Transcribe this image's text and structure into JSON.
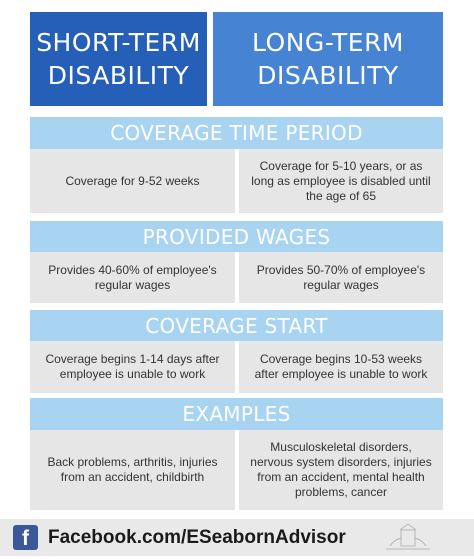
{
  "header": {
    "left_title": "SHORT-TERM\nDISABILITY",
    "right_title": "LONG-TERM\nDISABILITY"
  },
  "sections": [
    {
      "title": "COVERAGE TIME PERIOD",
      "short_term": "Coverage for 9-52 weeks",
      "long_term": "Coverage for 5-10 years, or as long as employee is disabled until the age of 65"
    },
    {
      "title": "PROVIDED WAGES",
      "short_term": "Provides 40-60% of employee's regular wages",
      "long_term": "Provides 50-70% of employee's regular wages"
    },
    {
      "title": "COVERAGE START",
      "short_term": "Coverage begins 1-14 days after employee is unable to work",
      "long_term": "Coverage begins 10-53 weeks after employee is unable to work"
    },
    {
      "title": "EXAMPLES",
      "short_term": "Back problems, arthritis, injuries from an accident, childbirth",
      "long_term": "Musculoskeletal disorders, nervous system disorders, injuries from an accident, mental health problems, cancer"
    }
  ],
  "footer": {
    "facebook_glyph": "f",
    "facebook_text": "Facebook.com/ESeabornAdvisor",
    "icon_names": [
      "facebook-icon",
      "advisor-logo-icon"
    ]
  },
  "colors": {
    "short_term_header": "#255fb8",
    "long_term_header": "#4683d3",
    "section_band": "#a8d4f2",
    "cell_background": "#e6e6e6",
    "facebook_blue": "#3b5998"
  }
}
